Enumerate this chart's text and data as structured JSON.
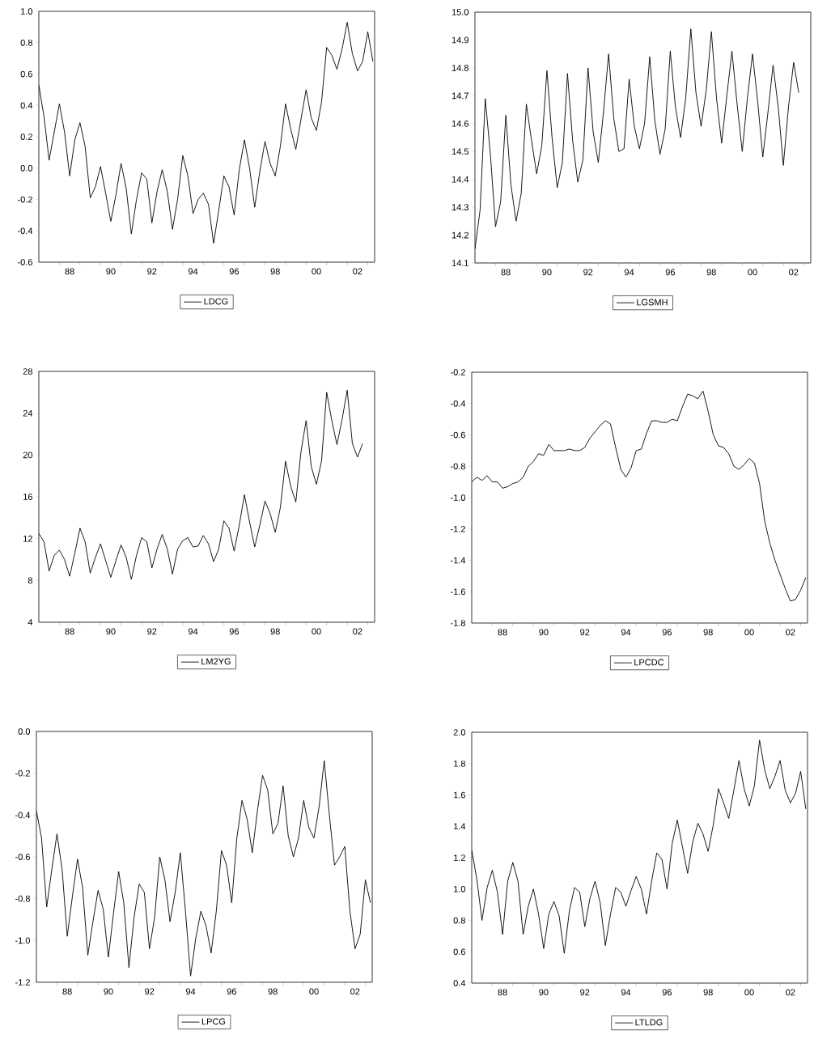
{
  "chart_data": [
    {
      "type": "line",
      "x": [
        "1987-01",
        "1987-04",
        "1987-07",
        "1987-10",
        "1988-01",
        "1988-04",
        "1988-07",
        "1988-10",
        "1989-01",
        "1989-04",
        "1989-07",
        "1989-10",
        "1990-01",
        "1990-04",
        "1990-07",
        "1990-10",
        "1991-01",
        "1991-04",
        "1991-07",
        "1991-10",
        "1992-01",
        "1992-04",
        "1992-07",
        "1992-10",
        "1993-01",
        "1993-04",
        "1993-07",
        "1993-10",
        "1994-01",
        "1994-04",
        "1994-07",
        "1994-10",
        "1995-01",
        "1995-04",
        "1995-07",
        "1995-10",
        "1996-01",
        "1996-04",
        "1996-07",
        "1996-10",
        "1997-01",
        "1997-04",
        "1997-07",
        "1997-10",
        "1998-01",
        "1998-04",
        "1998-07",
        "1998-10",
        "1999-01",
        "1999-04",
        "1999-07",
        "1999-10",
        "2000-01",
        "2000-04",
        "2000-07",
        "2000-10",
        "2001-01",
        "2001-04",
        "2001-07",
        "2001-10",
        "2002-01",
        "2002-04",
        "2002-07",
        "2002-10",
        "2003-01",
        "2003-04"
      ],
      "series": [
        {
          "name": "LDCG",
          "color": "#000000",
          "values": [
            0.53,
            0.33,
            0.05,
            0.23,
            0.41,
            0.23,
            -0.05,
            0.18,
            0.29,
            0.14,
            -0.19,
            -0.12,
            0.01,
            -0.16,
            -0.34,
            -0.17,
            0.03,
            -0.13,
            -0.42,
            -0.2,
            -0.03,
            -0.07,
            -0.35,
            -0.15,
            -0.01,
            -0.15,
            -0.39,
            -0.2,
            0.08,
            -0.05,
            -0.29,
            -0.2,
            -0.16,
            -0.23,
            -0.48,
            -0.27,
            -0.05,
            -0.12,
            -0.3,
            -0.01,
            0.18,
            0.0,
            -0.25,
            -0.02,
            0.17,
            0.03,
            -0.05,
            0.14,
            0.41,
            0.25,
            0.12,
            0.31,
            0.5,
            0.32,
            0.24,
            0.42,
            0.77,
            0.72,
            0.63,
            0.76,
            0.93,
            0.73,
            0.62,
            0.68,
            0.87,
            0.68
          ]
        }
      ],
      "xlim": [
        "1987-01",
        "2003-05"
      ],
      "xticks": [
        {
          "value": "1988-07",
          "label": "88"
        },
        {
          "value": "1990-07",
          "label": "90"
        },
        {
          "value": "1992-07",
          "label": "92"
        },
        {
          "value": "1994-07",
          "label": "94"
        },
        {
          "value": "1996-07",
          "label": "96"
        },
        {
          "value": "1998-07",
          "label": "98"
        },
        {
          "value": "2000-07",
          "label": "00"
        },
        {
          "value": "2002-07",
          "label": "02"
        },
        {
          "value": "1988",
          "label": null
        },
        {
          "value": "1989",
          "label": null
        },
        {
          "value": "1990",
          "label": null
        },
        {
          "value": "1991",
          "label": null
        },
        {
          "value": "1992",
          "label": null
        },
        {
          "value": "1993",
          "label": null
        },
        {
          "value": "1994",
          "label": null
        },
        {
          "value": "1995",
          "label": null
        },
        {
          "value": "1996",
          "label": null
        },
        {
          "value": "1997",
          "label": null
        },
        {
          "value": "1998",
          "label": null
        },
        {
          "value": "1999",
          "label": null
        },
        {
          "value": "2000",
          "label": null
        },
        {
          "value": "2001",
          "label": null
        },
        {
          "value": "2002",
          "label": null
        },
        {
          "value": "2003",
          "label": null
        }
      ],
      "ylim": [
        -0.6,
        1.0
      ],
      "yticks": [
        {
          "value": -0.6,
          "label": "-0.6"
        },
        {
          "value": -0.4,
          "label": "-0.4"
        },
        {
          "value": -0.2,
          "label": "-0.2"
        },
        {
          "value": 0,
          "label": "0.0"
        },
        {
          "value": 0.2,
          "label": "0.2"
        },
        {
          "value": 0.4,
          "label": "0.4"
        },
        {
          "value": 0.6,
          "label": "0.6"
        },
        {
          "value": 0.8,
          "label": "0.8"
        },
        {
          "value": 1,
          "label": "1.0"
        }
      ],
      "legend": "bottom"
    },
    {
      "type": "line",
      "x": [
        "1987-01",
        "1987-04",
        "1987-07",
        "1987-10",
        "1988-01",
        "1988-04",
        "1988-07",
        "1988-10",
        "1989-01",
        "1989-04",
        "1989-07",
        "1989-10",
        "1990-01",
        "1990-04",
        "1990-07",
        "1990-10",
        "1991-01",
        "1991-04",
        "1991-07",
        "1991-10",
        "1992-01",
        "1992-04",
        "1992-07",
        "1992-10",
        "1993-01",
        "1993-04",
        "1993-07",
        "1993-10",
        "1994-01",
        "1994-04",
        "1994-07",
        "1994-10",
        "1995-01",
        "1995-04",
        "1995-07",
        "1995-10",
        "1996-01",
        "1996-04",
        "1996-07",
        "1996-10",
        "1997-01",
        "1997-04",
        "1997-07",
        "1997-10",
        "1998-01",
        "1998-04",
        "1998-07",
        "1998-10",
        "1999-01",
        "1999-04",
        "1999-07",
        "1999-10",
        "2000-01",
        "2000-04",
        "2000-07",
        "2000-10",
        "2001-01",
        "2001-04",
        "2001-07",
        "2001-10",
        "2002-01",
        "2002-04",
        "2002-07",
        "2002-10"
      ],
      "series": [
        {
          "name": "LGSMH",
          "color": "#000000",
          "values": [
            14.15,
            14.29,
            14.69,
            14.49,
            14.23,
            14.32,
            14.63,
            14.38,
            14.25,
            14.35,
            14.67,
            14.54,
            14.42,
            14.52,
            14.79,
            14.55,
            14.37,
            14.46,
            14.78,
            14.54,
            14.39,
            14.47,
            14.8,
            14.57,
            14.46,
            14.64,
            14.85,
            14.62,
            14.5,
            14.51,
            14.76,
            14.59,
            14.51,
            14.6,
            14.84,
            14.61,
            14.49,
            14.58,
            14.86,
            14.66,
            14.55,
            14.69,
            14.94,
            14.71,
            14.59,
            14.72,
            14.93,
            14.69,
            14.53,
            14.7,
            14.86,
            14.67,
            14.5,
            14.69,
            14.85,
            14.68,
            14.48,
            14.64,
            14.81,
            14.66,
            14.45,
            14.66,
            14.82,
            14.71
          ]
        }
      ],
      "xlim": [
        "1987-01",
        "2003-05"
      ],
      "xticks": [
        {
          "value": "1988-07",
          "label": "88"
        },
        {
          "value": "1990-07",
          "label": "90"
        },
        {
          "value": "1992-07",
          "label": "92"
        },
        {
          "value": "1994-07",
          "label": "94"
        },
        {
          "value": "1996-07",
          "label": "96"
        },
        {
          "value": "1998-07",
          "label": "98"
        },
        {
          "value": "2000-07",
          "label": "00"
        },
        {
          "value": "2002-07",
          "label": "02"
        },
        {
          "value": "1988",
          "label": null
        },
        {
          "value": "1989",
          "label": null
        },
        {
          "value": "1990",
          "label": null
        },
        {
          "value": "1991",
          "label": null
        },
        {
          "value": "1992",
          "label": null
        },
        {
          "value": "1993",
          "label": null
        },
        {
          "value": "1994",
          "label": null
        },
        {
          "value": "1995",
          "label": null
        },
        {
          "value": "1996",
          "label": null
        },
        {
          "value": "1997",
          "label": null
        },
        {
          "value": "1998",
          "label": null
        },
        {
          "value": "1999",
          "label": null
        },
        {
          "value": "2000",
          "label": null
        },
        {
          "value": "2001",
          "label": null
        },
        {
          "value": "2002",
          "label": null
        },
        {
          "value": "2003",
          "label": null
        }
      ],
      "ylim": [
        14.1,
        15.0
      ],
      "yticks": [
        {
          "value": 14.1,
          "label": "14.1"
        },
        {
          "value": 14.2,
          "label": "14.2"
        },
        {
          "value": 14.3,
          "label": "14.3"
        },
        {
          "value": 14.4,
          "label": "14.4"
        },
        {
          "value": 14.5,
          "label": "14.5"
        },
        {
          "value": 14.6,
          "label": "14.6"
        },
        {
          "value": 14.7,
          "label": "14.7"
        },
        {
          "value": 14.8,
          "label": "14.8"
        },
        {
          "value": 14.9,
          "label": "14.9"
        },
        {
          "value": 15,
          "label": "15.0"
        }
      ],
      "legend": "bottom"
    },
    {
      "type": "line",
      "x": [
        "1987-01",
        "1987-04",
        "1987-07",
        "1987-10",
        "1988-01",
        "1988-04",
        "1988-07",
        "1988-10",
        "1989-01",
        "1989-04",
        "1989-07",
        "1989-10",
        "1990-01",
        "1990-04",
        "1990-07",
        "1990-10",
        "1991-01",
        "1991-04",
        "1991-07",
        "1991-10",
        "1992-01",
        "1992-04",
        "1992-07",
        "1992-10",
        "1993-01",
        "1993-04",
        "1993-07",
        "1993-10",
        "1994-01",
        "1994-04",
        "1994-07",
        "1994-10",
        "1995-01",
        "1995-04",
        "1995-07",
        "1995-10",
        "1996-01",
        "1996-04",
        "1996-07",
        "1996-10",
        "1997-01",
        "1997-04",
        "1997-07",
        "1997-10",
        "1998-01",
        "1998-04",
        "1998-07",
        "1998-10",
        "1999-01",
        "1999-04",
        "1999-07",
        "1999-10",
        "2000-01",
        "2000-04",
        "2000-07",
        "2000-10",
        "2001-01",
        "2001-04",
        "2001-07",
        "2001-10",
        "2002-01",
        "2002-04",
        "2002-07",
        "2002-10"
      ],
      "series": [
        {
          "name": "LM2YG",
          "color": "#000000",
          "values": [
            12.5,
            11.7,
            8.9,
            10.4,
            10.9,
            10.0,
            8.4,
            10.6,
            13.0,
            11.7,
            8.7,
            10.2,
            11.5,
            9.9,
            8.3,
            9.9,
            11.4,
            10.2,
            8.1,
            10.4,
            12.1,
            11.7,
            9.2,
            11.0,
            12.4,
            11.0,
            8.6,
            11.0,
            11.8,
            12.1,
            11.2,
            11.3,
            12.3,
            11.5,
            9.8,
            11.0,
            13.7,
            13.0,
            10.8,
            13.3,
            16.2,
            13.6,
            11.2,
            13.3,
            15.6,
            14.4,
            12.6,
            15.0,
            19.4,
            17.0,
            15.5,
            20.3,
            23.3,
            18.9,
            17.2,
            19.4,
            26.0,
            23.3,
            21.0,
            23.4,
            26.2,
            21.1,
            19.8,
            21.1
          ]
        }
      ],
      "xlim": [
        "1987-01",
        "2003-05"
      ],
      "xticks": [
        {
          "value": "1988-07",
          "label": "88"
        },
        {
          "value": "1990-07",
          "label": "90"
        },
        {
          "value": "1992-07",
          "label": "92"
        },
        {
          "value": "1994-07",
          "label": "94"
        },
        {
          "value": "1996-07",
          "label": "96"
        },
        {
          "value": "1998-07",
          "label": "98"
        },
        {
          "value": "2000-07",
          "label": "00"
        },
        {
          "value": "2002-07",
          "label": "02"
        },
        {
          "value": "1988",
          "label": null
        },
        {
          "value": "1989",
          "label": null
        },
        {
          "value": "1990",
          "label": null
        },
        {
          "value": "1991",
          "label": null
        },
        {
          "value": "1992",
          "label": null
        },
        {
          "value": "1993",
          "label": null
        },
        {
          "value": "1994",
          "label": null
        },
        {
          "value": "1995",
          "label": null
        },
        {
          "value": "1996",
          "label": null
        },
        {
          "value": "1997",
          "label": null
        },
        {
          "value": "1998",
          "label": null
        },
        {
          "value": "1999",
          "label": null
        },
        {
          "value": "2000",
          "label": null
        },
        {
          "value": "2001",
          "label": null
        },
        {
          "value": "2002",
          "label": null
        },
        {
          "value": "2003",
          "label": null
        }
      ],
      "ylim": [
        4,
        28
      ],
      "yticks": [
        4,
        8,
        12,
        16,
        20,
        24,
        28
      ],
      "legend": "bottom"
    },
    {
      "type": "line",
      "x": [
        "1987-01",
        "1987-04",
        "1987-07",
        "1987-10",
        "1988-01",
        "1988-04",
        "1988-07",
        "1988-10",
        "1989-01",
        "1989-04",
        "1989-07",
        "1989-10",
        "1990-01",
        "1990-04",
        "1990-07",
        "1990-10",
        "1991-01",
        "1991-04",
        "1991-07",
        "1991-10",
        "1992-01",
        "1992-04",
        "1992-07",
        "1992-10",
        "1993-01",
        "1993-04",
        "1993-07",
        "1993-10",
        "1994-01",
        "1994-04",
        "1994-07",
        "1994-10",
        "1995-01",
        "1995-04",
        "1995-07",
        "1995-10",
        "1996-01",
        "1996-04",
        "1996-07",
        "1996-10",
        "1997-01",
        "1997-04",
        "1997-07",
        "1997-10",
        "1998-01",
        "1998-04",
        "1998-07",
        "1998-10",
        "1999-01",
        "1999-04",
        "1999-07",
        "1999-10",
        "2000-01",
        "2000-04",
        "2000-07",
        "2000-10",
        "2001-01",
        "2001-04",
        "2001-07",
        "2001-10",
        "2002-01",
        "2002-04",
        "2002-07",
        "2002-10",
        "2003-01",
        "2003-04"
      ],
      "series": [
        {
          "name": "LPCDC",
          "color": "#000000",
          "values": [
            -0.9,
            -0.87,
            -0.89,
            -0.86,
            -0.9,
            -0.9,
            -0.94,
            -0.93,
            -0.91,
            -0.9,
            -0.87,
            -0.8,
            -0.77,
            -0.72,
            -0.73,
            -0.66,
            -0.7,
            -0.7,
            -0.7,
            -0.69,
            -0.7,
            -0.7,
            -0.68,
            -0.62,
            -0.58,
            -0.54,
            -0.51,
            -0.53,
            -0.68,
            -0.82,
            -0.87,
            -0.81,
            -0.7,
            -0.69,
            -0.59,
            -0.51,
            -0.51,
            -0.52,
            -0.52,
            -0.5,
            -0.51,
            -0.42,
            -0.34,
            -0.35,
            -0.37,
            -0.32,
            -0.45,
            -0.6,
            -0.67,
            -0.68,
            -0.72,
            -0.8,
            -0.82,
            -0.79,
            -0.75,
            -0.78,
            -0.91,
            -1.15,
            -1.29,
            -1.4,
            -1.49,
            -1.58,
            -1.66,
            -1.65,
            -1.59,
            -1.51
          ]
        }
      ],
      "xlim": [
        "1987-01",
        "2003-05"
      ],
      "xticks": [
        {
          "value": "1988-07",
          "label": "88"
        },
        {
          "value": "1990-07",
          "label": "90"
        },
        {
          "value": "1992-07",
          "label": "92"
        },
        {
          "value": "1994-07",
          "label": "94"
        },
        {
          "value": "1996-07",
          "label": "96"
        },
        {
          "value": "1998-07",
          "label": "98"
        },
        {
          "value": "2000-07",
          "label": "00"
        },
        {
          "value": "2002-07",
          "label": "02"
        },
        {
          "value": "1988",
          "label": null
        },
        {
          "value": "1989",
          "label": null
        },
        {
          "value": "1990",
          "label": null
        },
        {
          "value": "1991",
          "label": null
        },
        {
          "value": "1992",
          "label": null
        },
        {
          "value": "1993",
          "label": null
        },
        {
          "value": "1994",
          "label": null
        },
        {
          "value": "1995",
          "label": null
        },
        {
          "value": "1996",
          "label": null
        },
        {
          "value": "1997",
          "label": null
        },
        {
          "value": "1998",
          "label": null
        },
        {
          "value": "1999",
          "label": null
        },
        {
          "value": "2000",
          "label": null
        },
        {
          "value": "2001",
          "label": null
        },
        {
          "value": "2002",
          "label": null
        },
        {
          "value": "2003",
          "label": null
        }
      ],
      "ylim": [
        -1.8,
        -0.2
      ],
      "yticks": [
        {
          "value": -1.8,
          "label": "-1.8"
        },
        {
          "value": -1.6,
          "label": "-1.6"
        },
        {
          "value": -1.4,
          "label": "-1.4"
        },
        {
          "value": -1.2,
          "label": "-1.2"
        },
        {
          "value": -1.0,
          "label": "-1.0"
        },
        {
          "value": -0.8,
          "label": "-0.8"
        },
        {
          "value": -0.6,
          "label": "-0.6"
        },
        {
          "value": -0.4,
          "label": "-0.4"
        },
        {
          "value": -0.2,
          "label": "-0.2"
        }
      ],
      "legend": "bottom"
    },
    {
      "type": "line",
      "x": [
        "1987-01",
        "1987-04",
        "1987-07",
        "1987-10",
        "1988-01",
        "1988-04",
        "1988-07",
        "1988-10",
        "1989-01",
        "1989-04",
        "1989-07",
        "1989-10",
        "1990-01",
        "1990-04",
        "1990-07",
        "1990-10",
        "1991-01",
        "1991-04",
        "1991-07",
        "1991-10",
        "1992-01",
        "1992-04",
        "1992-07",
        "1992-10",
        "1993-01",
        "1993-04",
        "1993-07",
        "1993-10",
        "1994-01",
        "1994-04",
        "1994-07",
        "1994-10",
        "1995-01",
        "1995-04",
        "1995-07",
        "1995-10",
        "1996-01",
        "1996-04",
        "1996-07",
        "1996-10",
        "1997-01",
        "1997-04",
        "1997-07",
        "1997-10",
        "1998-01",
        "1998-04",
        "1998-07",
        "1998-10",
        "1999-01",
        "1999-04",
        "1999-07",
        "1999-10",
        "2000-01",
        "2000-04",
        "2000-07",
        "2000-10",
        "2001-01",
        "2001-04",
        "2001-07",
        "2001-10",
        "2002-01",
        "2002-04",
        "2002-07",
        "2002-10",
        "2003-01",
        "2003-04"
      ],
      "series": [
        {
          "name": "LPCG",
          "color": "#000000",
          "values": [
            -0.38,
            -0.51,
            -0.84,
            -0.66,
            -0.49,
            -0.66,
            -0.98,
            -0.79,
            -0.61,
            -0.75,
            -1.07,
            -0.91,
            -0.76,
            -0.85,
            -1.08,
            -0.87,
            -0.67,
            -0.82,
            -1.13,
            -0.89,
            -0.73,
            -0.77,
            -1.04,
            -0.89,
            -0.6,
            -0.71,
            -0.91,
            -0.77,
            -0.58,
            -0.86,
            -1.17,
            -0.99,
            -0.86,
            -0.93,
            -1.06,
            -0.86,
            -0.57,
            -0.64,
            -0.82,
            -0.51,
            -0.33,
            -0.42,
            -0.58,
            -0.38,
            -0.21,
            -0.28,
            -0.49,
            -0.44,
            -0.26,
            -0.5,
            -0.6,
            -0.51,
            -0.33,
            -0.46,
            -0.51,
            -0.36,
            -0.14,
            -0.4,
            -0.64,
            -0.6,
            -0.55,
            -0.86,
            -1.04,
            -0.97,
            -0.71,
            -0.82
          ]
        }
      ],
      "xlim": [
        "1987-01",
        "2003-05"
      ],
      "xticks": [
        {
          "value": "1988-07",
          "label": "88"
        },
        {
          "value": "1990-07",
          "label": "90"
        },
        {
          "value": "1992-07",
          "label": "92"
        },
        {
          "value": "1994-07",
          "label": "94"
        },
        {
          "value": "1996-07",
          "label": "96"
        },
        {
          "value": "1998-07",
          "label": "98"
        },
        {
          "value": "2000-07",
          "label": "00"
        },
        {
          "value": "2002-07",
          "label": "02"
        },
        {
          "value": "1988",
          "label": null
        },
        {
          "value": "1989",
          "label": null
        },
        {
          "value": "1990",
          "label": null
        },
        {
          "value": "1991",
          "label": null
        },
        {
          "value": "1992",
          "label": null
        },
        {
          "value": "1993",
          "label": null
        },
        {
          "value": "1994",
          "label": null
        },
        {
          "value": "1995",
          "label": null
        },
        {
          "value": "1996",
          "label": null
        },
        {
          "value": "1997",
          "label": null
        },
        {
          "value": "1998",
          "label": null
        },
        {
          "value": "1999",
          "label": null
        },
        {
          "value": "2000",
          "label": null
        },
        {
          "value": "2001",
          "label": null
        },
        {
          "value": "2002",
          "label": null
        },
        {
          "value": "2003",
          "label": null
        }
      ],
      "ylim": [
        -1.2,
        0.0
      ],
      "yticks": [
        {
          "value": -1.2,
          "label": "-1.2"
        },
        {
          "value": -1.0,
          "label": "-1.0"
        },
        {
          "value": -0.8,
          "label": "-0.8"
        },
        {
          "value": -0.6,
          "label": "-0.6"
        },
        {
          "value": -0.4,
          "label": "-0.4"
        },
        {
          "value": -0.2,
          "label": "-0.2"
        },
        {
          "value": 0,
          "label": "0.0"
        }
      ],
      "legend": "bottom"
    },
    {
      "type": "line",
      "x": [
        "1987-01",
        "1987-04",
        "1987-07",
        "1987-10",
        "1988-01",
        "1988-04",
        "1988-07",
        "1988-10",
        "1989-01",
        "1989-04",
        "1989-07",
        "1989-10",
        "1990-01",
        "1990-04",
        "1990-07",
        "1990-10",
        "1991-01",
        "1991-04",
        "1991-07",
        "1991-10",
        "1992-01",
        "1992-04",
        "1992-07",
        "1992-10",
        "1993-01",
        "1993-04",
        "1993-07",
        "1993-10",
        "1994-01",
        "1994-04",
        "1994-07",
        "1994-10",
        "1995-01",
        "1995-04",
        "1995-07",
        "1995-10",
        "1996-01",
        "1996-04",
        "1996-07",
        "1996-10",
        "1997-01",
        "1997-04",
        "1997-07",
        "1997-10",
        "1998-01",
        "1998-04",
        "1998-07",
        "1998-10",
        "1999-01",
        "1999-04",
        "1999-07",
        "1999-10",
        "2000-01",
        "2000-04",
        "2000-07",
        "2000-10",
        "2001-01",
        "2001-04",
        "2001-07",
        "2001-10",
        "2002-01",
        "2002-04",
        "2002-07",
        "2002-10",
        "2003-01",
        "2003-04"
      ],
      "series": [
        {
          "name": "LTLDG",
          "color": "#000000",
          "values": [
            1.25,
            1.06,
            0.8,
            1.01,
            1.12,
            0.98,
            0.71,
            1.05,
            1.17,
            1.05,
            0.71,
            0.89,
            1.0,
            0.84,
            0.62,
            0.84,
            0.92,
            0.83,
            0.59,
            0.86,
            1.01,
            0.98,
            0.76,
            0.94,
            1.05,
            0.91,
            0.64,
            0.84,
            1.01,
            0.98,
            0.89,
            0.99,
            1.08,
            1.0,
            0.84,
            1.05,
            1.23,
            1.19,
            1.0,
            1.29,
            1.44,
            1.27,
            1.1,
            1.3,
            1.42,
            1.35,
            1.24,
            1.41,
            1.64,
            1.55,
            1.45,
            1.63,
            1.82,
            1.64,
            1.53,
            1.66,
            1.95,
            1.76,
            1.64,
            1.72,
            1.82,
            1.63,
            1.55,
            1.61,
            1.75,
            1.51
          ]
        }
      ],
      "xlim": [
        "1987-01",
        "2003-05"
      ],
      "xticks": [
        {
          "value": "1988-07",
          "label": "88"
        },
        {
          "value": "1990-07",
          "label": "90"
        },
        {
          "value": "1992-07",
          "label": "92"
        },
        {
          "value": "1994-07",
          "label": "94"
        },
        {
          "value": "1996-07",
          "label": "96"
        },
        {
          "value": "1998-07",
          "label": "98"
        },
        {
          "value": "2000-07",
          "label": "00"
        },
        {
          "value": "2002-07",
          "label": "02"
        },
        {
          "value": "1988",
          "label": null
        },
        {
          "value": "1989",
          "label": null
        },
        {
          "value": "1990",
          "label": null
        },
        {
          "value": "1991",
          "label": null
        },
        {
          "value": "1992",
          "label": null
        },
        {
          "value": "1993",
          "label": null
        },
        {
          "value": "1994",
          "label": null
        },
        {
          "value": "1995",
          "label": null
        },
        {
          "value": "1996",
          "label": null
        },
        {
          "value": "1997",
          "label": null
        },
        {
          "value": "1998",
          "label": null
        },
        {
          "value": "1999",
          "label": null
        },
        {
          "value": "2000",
          "label": null
        },
        {
          "value": "2001",
          "label": null
        },
        {
          "value": "2002",
          "label": null
        },
        {
          "value": "2003",
          "label": null
        }
      ],
      "ylim": [
        0.4,
        2.0
      ],
      "yticks": [
        {
          "value": 0.4,
          "label": "0.4"
        },
        {
          "value": 0.6,
          "label": "0.6"
        },
        {
          "value": 0.8,
          "label": "0.8"
        },
        {
          "value": 1.0,
          "label": "1.0"
        },
        {
          "value": 1.2,
          "label": "1.2"
        },
        {
          "value": 1.4,
          "label": "1.4"
        },
        {
          "value": 1.6,
          "label": "1.6"
        },
        {
          "value": 1.8,
          "label": "1.8"
        },
        {
          "value": 2,
          "label": "2.0"
        }
      ],
      "legend": "bottom"
    }
  ]
}
